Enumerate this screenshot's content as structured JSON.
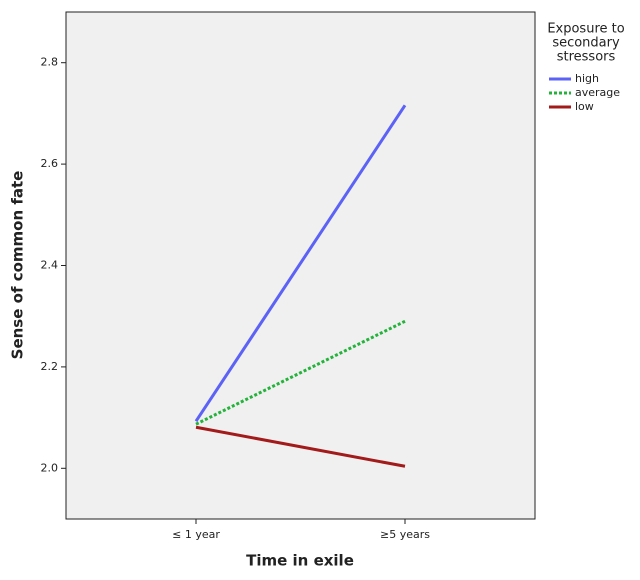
{
  "chart_data": {
    "type": "line",
    "x_label": "Time in exile",
    "y_label": "Sense of common fate",
    "categories": [
      "≤ 1 year",
      "≥5 years"
    ],
    "legend_title": [
      "Exposure to",
      "secondary",
      "stressors"
    ],
    "legend": "right",
    "series": [
      {
        "name": "high",
        "color": "#5b62f5",
        "style": "solid",
        "values": [
          2.093,
          2.716
        ]
      },
      {
        "name": "average",
        "color": "#23b33a",
        "style": "dotted",
        "values": [
          2.087,
          2.29
        ]
      },
      {
        "name": "low",
        "color": "#a31a1a",
        "style": "solid",
        "values": [
          2.081,
          2.004
        ]
      }
    ],
    "ylim": [
      1.9,
      2.9
    ],
    "yticks": [
      {
        "value": 2,
        "label": "2.0"
      },
      {
        "value": 2.2,
        "label": "2.2"
      },
      {
        "value": 2.4,
        "label": "2.4"
      },
      {
        "value": 2.6,
        "label": "2.6"
      },
      {
        "value": 2.8,
        "label": "2.8"
      }
    ]
  }
}
